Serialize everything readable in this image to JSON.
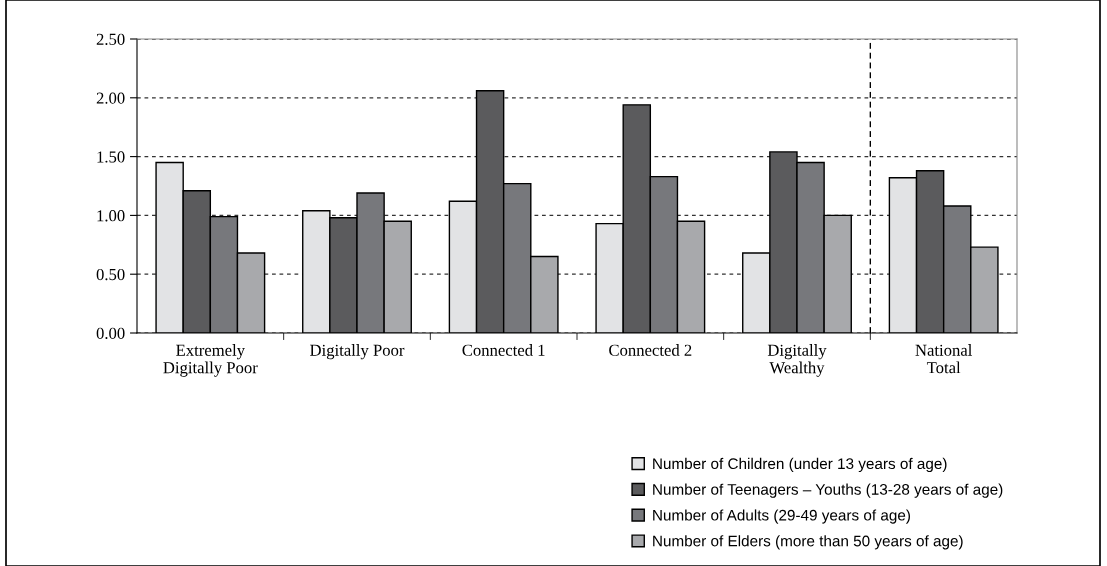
{
  "chart_data": {
    "type": "bar",
    "categories": [
      "Extremely\nDigitally Poor",
      "Digitally Poor",
      "Connected 1",
      "Connected 2",
      "Digitally\nWealthy",
      "National\nTotal"
    ],
    "series": [
      {
        "name": "Number of Children (under 13 years of age)",
        "color": "#e2e3e5",
        "values": [
          1.45,
          1.04,
          1.12,
          0.93,
          0.68,
          1.32
        ]
      },
      {
        "name": "Number of Teenagers – Youths (13-28 years of age)",
        "color": "#5b5b5d",
        "values": [
          1.21,
          0.98,
          2.06,
          1.94,
          1.54,
          1.38
        ]
      },
      {
        "name": "Number of Adults (29-49 years of age)",
        "color": "#77787c",
        "values": [
          0.99,
          1.19,
          1.27,
          1.33,
          1.45,
          1.08
        ]
      },
      {
        "name": "Number of Elders (more than 50 years of age)",
        "color": "#a8a9ac",
        "values": [
          0.68,
          0.95,
          0.65,
          0.95,
          1.0,
          0.73
        ]
      }
    ],
    "ylim": [
      0,
      2.5
    ],
    "yticks": [
      {
        "value": 0,
        "label": "0.00"
      },
      {
        "value": 0.5,
        "label": "0.50"
      },
      {
        "value": 1.0,
        "label": "1.00"
      },
      {
        "value": 1.5,
        "label": "1.50"
      },
      {
        "value": 2.0,
        "label": "2.00"
      },
      {
        "value": 2.5,
        "label": "2.50"
      }
    ],
    "grid": "y",
    "legend": "bottom right"
  }
}
